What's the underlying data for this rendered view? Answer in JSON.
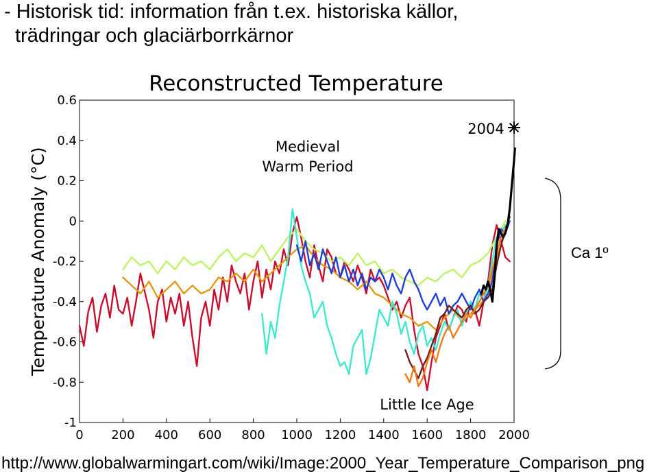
{
  "slide": {
    "heading_line1": "- Historisk tid: information från t.ex. historiska källor,",
    "heading_line2": "trädringar och glaciärborrkärnor",
    "bracket_label": "Ca 1º",
    "source_url": "http://www.globalwarmingart.com/wiki/Image:2000_Year_Temperature_Comparison_png"
  },
  "chart_data": {
    "type": "line",
    "title": "Reconstructed Temperature",
    "xlabel": "",
    "ylabel": "Temperature Anomaly (°C)",
    "xlim": [
      0,
      2000
    ],
    "ylim": [
      -1,
      0.6
    ],
    "xticks": [
      0,
      200,
      400,
      600,
      800,
      1000,
      1200,
      1400,
      1600,
      1800,
      2000
    ],
    "yticks": [
      0.6,
      0.4,
      0.2,
      0,
      -0.2,
      -0.4,
      -0.6,
      -0.8,
      -1
    ],
    "ytick_labels": [
      "0.6",
      "0.4",
      "0.2",
      "0",
      "-0.2",
      "-0.4",
      "-0.6",
      "-0.8",
      "-1"
    ],
    "grid": false,
    "annotations": [
      {
        "text": "Medieval",
        "x": 1050,
        "y": 0.35
      },
      {
        "text": "Warm Period",
        "x": 1050,
        "y": 0.25
      },
      {
        "text": "Little Ice Age",
        "x": 1560,
        "y": -0.99
      },
      {
        "text": "2004",
        "x": 1820,
        "y": 0.45
      }
    ],
    "marker_2004": {
      "x": 2004,
      "y": 0.45
    },
    "series": [
      {
        "color": "#c8102e",
        "x": [
          0,
          20,
          40,
          60,
          80,
          100,
          120,
          140,
          160,
          180,
          200,
          220,
          240,
          260,
          280,
          300,
          320,
          340,
          360,
          380,
          400,
          420,
          440,
          460,
          480,
          500,
          520,
          540,
          560,
          580,
          600,
          620,
          640,
          660,
          680,
          700,
          720,
          740,
          760,
          780,
          800,
          820,
          840,
          860,
          880,
          900,
          920,
          940,
          960,
          980,
          1000,
          1020,
          1040,
          1060,
          1080,
          1100,
          1120,
          1140,
          1160,
          1180,
          1200,
          1220,
          1240,
          1260,
          1280,
          1300,
          1320,
          1340,
          1360,
          1380,
          1400,
          1420,
          1440,
          1460,
          1480,
          1500,
          1520,
          1540,
          1560,
          1580,
          1600,
          1620,
          1640,
          1660,
          1680,
          1700,
          1720,
          1740,
          1760,
          1780,
          1800,
          1820,
          1840,
          1860,
          1880,
          1900,
          1920,
          1940,
          1960,
          1980
        ],
        "y": [
          -0.52,
          -0.62,
          -0.45,
          -0.38,
          -0.55,
          -0.42,
          -0.36,
          -0.48,
          -0.32,
          -0.44,
          -0.46,
          -0.38,
          -0.52,
          -0.4,
          -0.26,
          -0.35,
          -0.44,
          -0.58,
          -0.4,
          -0.34,
          -0.5,
          -0.38,
          -0.46,
          -0.36,
          -0.52,
          -0.4,
          -0.58,
          -0.72,
          -0.48,
          -0.4,
          -0.52,
          -0.34,
          -0.44,
          -0.28,
          -0.4,
          -0.22,
          -0.3,
          -0.36,
          -0.26,
          -0.44,
          -0.3,
          -0.2,
          -0.38,
          -0.24,
          -0.34,
          -0.2,
          -0.26,
          -0.14,
          -0.22,
          -0.06,
          0.02,
          -0.08,
          -0.2,
          -0.28,
          -0.12,
          -0.22,
          -0.3,
          -0.14,
          -0.18,
          -0.26,
          -0.28,
          -0.2,
          -0.24,
          -0.3,
          -0.22,
          -0.28,
          -0.36,
          -0.24,
          -0.3,
          -0.28,
          -0.32,
          -0.38,
          -0.44,
          -0.4,
          -0.48,
          -0.42,
          -0.38,
          -0.54,
          -0.66,
          -0.72,
          -0.84,
          -0.7,
          -0.58,
          -0.52,
          -0.46,
          -0.54,
          -0.48,
          -0.42,
          -0.44,
          -0.5,
          -0.4,
          -0.44,
          -0.52,
          -0.4,
          -0.3,
          -0.12,
          -0.02,
          -0.1,
          -0.18,
          -0.2
        ]
      },
      {
        "color": "#e09a14",
        "x": [
          200,
          240,
          280,
          320,
          360,
          400,
          440,
          480,
          520,
          560,
          600,
          640,
          680,
          720,
          760,
          800,
          840,
          880,
          920,
          960,
          1000,
          1040,
          1080,
          1120,
          1160,
          1200,
          1240,
          1280,
          1320,
          1360,
          1400,
          1440,
          1480,
          1520,
          1560,
          1600,
          1640,
          1680,
          1720,
          1760,
          1800,
          1840,
          1880,
          1920,
          1960
        ],
        "y": [
          -0.28,
          -0.32,
          -0.36,
          -0.3,
          -0.38,
          -0.34,
          -0.3,
          -0.36,
          -0.32,
          -0.36,
          -0.34,
          -0.28,
          -0.3,
          -0.26,
          -0.3,
          -0.24,
          -0.3,
          -0.26,
          -0.22,
          -0.18,
          -0.14,
          -0.12,
          -0.18,
          -0.22,
          -0.24,
          -0.28,
          -0.3,
          -0.34,
          -0.3,
          -0.36,
          -0.38,
          -0.42,
          -0.46,
          -0.48,
          -0.52,
          -0.5,
          -0.54,
          -0.48,
          -0.44,
          -0.5,
          -0.46,
          -0.42,
          -0.36,
          -0.18,
          -0.06
        ]
      },
      {
        "color": "#bff266",
        "x": [
          200,
          240,
          280,
          320,
          360,
          400,
          440,
          480,
          520,
          560,
          600,
          640,
          680,
          720,
          760,
          800,
          840,
          880,
          920,
          960,
          1000,
          1040,
          1080,
          1120,
          1160,
          1200,
          1240,
          1280,
          1320,
          1360,
          1400,
          1440,
          1480,
          1520,
          1560,
          1600,
          1640,
          1680,
          1720,
          1760,
          1800,
          1840,
          1880,
          1920,
          1960
        ],
        "y": [
          -0.24,
          -0.18,
          -0.22,
          -0.2,
          -0.26,
          -0.2,
          -0.24,
          -0.18,
          -0.22,
          -0.2,
          -0.24,
          -0.18,
          -0.14,
          -0.2,
          -0.16,
          -0.18,
          -0.12,
          -0.2,
          -0.14,
          -0.08,
          -0.04,
          -0.1,
          -0.14,
          -0.16,
          -0.2,
          -0.18,
          -0.22,
          -0.16,
          -0.22,
          -0.2,
          -0.26,
          -0.24,
          -0.28,
          -0.3,
          -0.32,
          -0.28,
          -0.3,
          -0.26,
          -0.24,
          -0.28,
          -0.22,
          -0.2,
          -0.16,
          -0.08,
          0.0
        ]
      },
      {
        "color": "#40e8cc",
        "x": [
          840,
          860,
          880,
          900,
          920,
          940,
          960,
          980,
          1000,
          1020,
          1040,
          1060,
          1080,
          1100,
          1120,
          1140,
          1160,
          1180,
          1200,
          1220,
          1240,
          1260,
          1280,
          1300,
          1320,
          1340,
          1360,
          1380,
          1400,
          1420,
          1440,
          1460,
          1480,
          1500,
          1520,
          1540,
          1560,
          1580,
          1600,
          1620,
          1640,
          1660,
          1680,
          1700,
          1720,
          1740,
          1760,
          1780,
          1800,
          1820,
          1840,
          1860,
          1880,
          1900,
          1920,
          1940,
          1960
        ],
        "y": [
          -0.46,
          -0.66,
          -0.5,
          -0.58,
          -0.42,
          -0.3,
          -0.18,
          0.06,
          -0.08,
          -0.22,
          -0.3,
          -0.36,
          -0.48,
          -0.44,
          -0.4,
          -0.52,
          -0.58,
          -0.66,
          -0.72,
          -0.7,
          -0.76,
          -0.62,
          -0.58,
          -0.54,
          -0.76,
          -0.68,
          -0.56,
          -0.44,
          -0.48,
          -0.52,
          -0.4,
          -0.46,
          -0.56,
          -0.5,
          -0.6,
          -0.66,
          -0.56,
          -0.52,
          -0.62,
          -0.58,
          -0.64,
          -0.56,
          -0.5,
          -0.54,
          -0.48,
          -0.44,
          -0.52,
          -0.46,
          -0.4,
          -0.44,
          -0.36,
          -0.4,
          -0.32,
          -0.2,
          -0.08,
          -0.06,
          -0.02
        ]
      },
      {
        "color": "#1f3fd6",
        "x": [
          1000,
          1020,
          1040,
          1060,
          1080,
          1100,
          1120,
          1140,
          1160,
          1180,
          1200,
          1220,
          1240,
          1260,
          1280,
          1300,
          1320,
          1340,
          1360,
          1380,
          1400,
          1420,
          1440,
          1460,
          1480,
          1500,
          1520,
          1540,
          1560,
          1580,
          1600,
          1620,
          1640,
          1660,
          1680,
          1700,
          1720,
          1740,
          1760,
          1780,
          1800,
          1820,
          1840,
          1860,
          1880,
          1900,
          1920,
          1940,
          1960,
          1980
        ],
        "y": [
          -0.12,
          -0.2,
          -0.1,
          -0.22,
          -0.16,
          -0.24,
          -0.14,
          -0.2,
          -0.26,
          -0.18,
          -0.28,
          -0.22,
          -0.3,
          -0.24,
          -0.32,
          -0.26,
          -0.34,
          -0.28,
          -0.3,
          -0.24,
          -0.28,
          -0.34,
          -0.26,
          -0.32,
          -0.36,
          -0.28,
          -0.24,
          -0.3,
          -0.34,
          -0.4,
          -0.44,
          -0.4,
          -0.36,
          -0.42,
          -0.38,
          -0.46,
          -0.42,
          -0.4,
          -0.36,
          -0.4,
          -0.44,
          -0.38,
          -0.34,
          -0.4,
          -0.36,
          -0.3,
          -0.12,
          -0.04,
          -0.06,
          0.0
        ]
      },
      {
        "color": "#6c1f1f",
        "x": [
          1500,
          1520,
          1540,
          1560,
          1580,
          1600,
          1620,
          1640,
          1660,
          1680,
          1700,
          1720,
          1740,
          1760,
          1780,
          1800,
          1820,
          1840,
          1860,
          1880,
          1900,
          1920,
          1940,
          1960,
          1980
        ],
        "y": [
          -0.64,
          -0.7,
          -0.74,
          -0.78,
          -0.72,
          -0.68,
          -0.62,
          -0.56,
          -0.48,
          -0.46,
          -0.42,
          -0.44,
          -0.46,
          -0.48,
          -0.44,
          -0.42,
          -0.46,
          -0.44,
          -0.4,
          -0.38,
          -0.34,
          -0.22,
          -0.12,
          -0.04,
          0.02
        ]
      },
      {
        "color": "#f07a1a",
        "x": [
          1500,
          1520,
          1540,
          1560,
          1580,
          1600,
          1620,
          1640,
          1660,
          1680,
          1700,
          1720,
          1740,
          1760,
          1780,
          1800,
          1820,
          1840,
          1860,
          1880,
          1900,
          1920,
          1940,
          1960
        ],
        "y": [
          -0.76,
          -0.8,
          -0.72,
          -0.82,
          -0.78,
          -0.7,
          -0.64,
          -0.7,
          -0.62,
          -0.56,
          -0.52,
          -0.58,
          -0.54,
          -0.5,
          -0.46,
          -0.48,
          -0.44,
          -0.4,
          -0.36,
          -0.32,
          -0.24,
          -0.16,
          -0.08,
          -0.04
        ]
      },
      {
        "color": "#000000",
        "x": [
          1850,
          1860,
          1870,
          1880,
          1890,
          1900,
          1910,
          1920,
          1930,
          1940,
          1950,
          1960,
          1970,
          1980,
          1990,
          2000,
          2004
        ],
        "y": [
          -0.36,
          -0.32,
          -0.34,
          -0.3,
          -0.34,
          -0.4,
          -0.28,
          -0.12,
          -0.04,
          -0.06,
          -0.08,
          -0.06,
          -0.02,
          0.06,
          0.18,
          0.3,
          0.36
        ]
      }
    ]
  }
}
